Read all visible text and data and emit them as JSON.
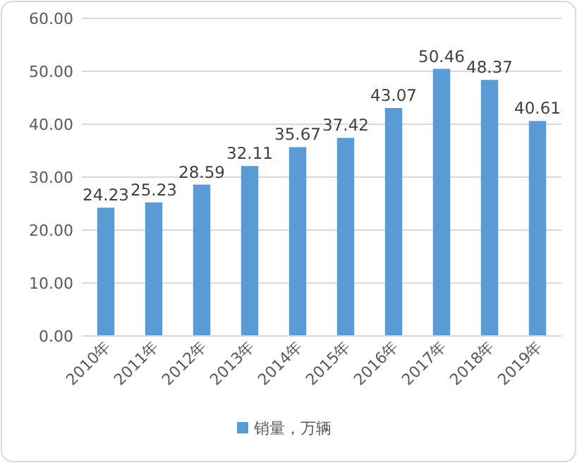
{
  "chart_data": {
    "type": "bar",
    "categories": [
      "2010年",
      "2011年",
      "2012年",
      "2013年",
      "2014年",
      "2015年",
      "2016年",
      "2017年",
      "2018年",
      "2019年"
    ],
    "series": [
      {
        "name": "销量，万辆",
        "color": "#5b9bd5",
        "values": [
          24.23,
          25.23,
          28.59,
          32.11,
          35.67,
          37.42,
          43.07,
          50.46,
          48.37,
          40.61
        ]
      }
    ],
    "ylim": [
      0,
      60
    ],
    "yticks": [
      {
        "value": 0,
        "label": "0.00"
      },
      {
        "value": 10,
        "label": "10.00"
      },
      {
        "value": 20,
        "label": "20.00"
      },
      {
        "value": 30,
        "label": "30.00"
      },
      {
        "value": 40,
        "label": "40.00"
      },
      {
        "value": 50,
        "label": "50.00"
      },
      {
        "value": 60,
        "label": "60.00"
      }
    ],
    "grid": "y",
    "legend": "bottom",
    "data_labels": true
  }
}
